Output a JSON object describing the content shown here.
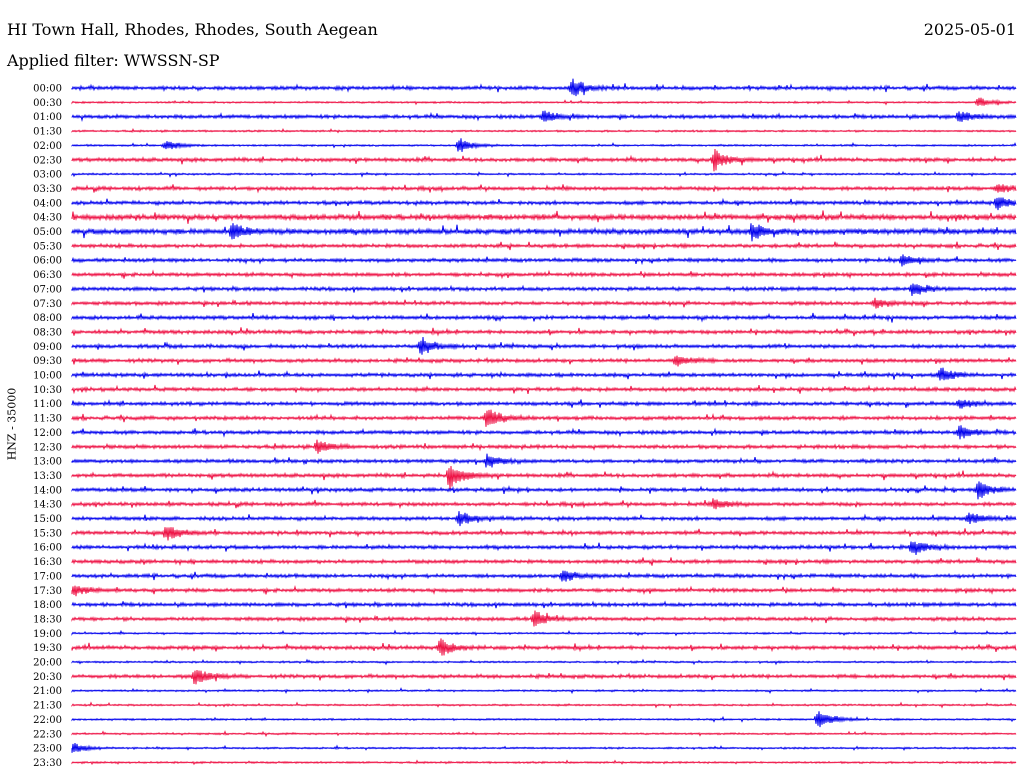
{
  "header": {
    "station": "HI Town Hall, Rhodes, Rhodes, South Aegean",
    "date": "2025-05-01",
    "filter": "Applied filter: WWSSN-SP",
    "y_axis_label": "HNZ - 35000"
  },
  "chart_data": {
    "type": "line",
    "title": "HI Town Hall, Rhodes, Rhodes, South Aegean",
    "subtitle": "Applied filter: WWSSN-SP",
    "ylabel": "HNZ - 35000",
    "row_labels": [
      "00:00",
      "00:30",
      "01:00",
      "01:30",
      "02:00",
      "02:30",
      "03:00",
      "03:30",
      "04:00",
      "04:30",
      "05:00",
      "05:30",
      "06:00",
      "06:30",
      "07:00",
      "07:30",
      "08:00",
      "08:30",
      "09:00",
      "09:30",
      "10:00",
      "10:30",
      "11:00",
      "11:30",
      "12:00",
      "12:30",
      "13:00",
      "13:30",
      "14:00",
      "14:30",
      "15:00",
      "15:30",
      "16:00",
      "16:30",
      "17:00",
      "17:30",
      "18:00",
      "18:30",
      "19:00",
      "19:30",
      "20:00",
      "20:30",
      "21:00",
      "21:30",
      "22:00",
      "22:30",
      "23:00",
      "23:30"
    ],
    "series_colors": [
      "#0000ee",
      "#ee1144"
    ],
    "noise_level": [
      2,
      1,
      2,
      1,
      1,
      2,
      1,
      2,
      2,
      3,
      3,
      2,
      2,
      2,
      2,
      2,
      2,
      2,
      2,
      2,
      2,
      2,
      2,
      2,
      2,
      2,
      2,
      2,
      2,
      2,
      2,
      2,
      2,
      2,
      2,
      2,
      2,
      2,
      1,
      2,
      1,
      2,
      1,
      1,
      1,
      1,
      1,
      1
    ],
    "events": [
      {
        "row": 0,
        "t": 0.53,
        "amp": 10
      },
      {
        "row": 1,
        "t": 0.96,
        "amp": 5
      },
      {
        "row": 2,
        "t": 0.5,
        "amp": 7
      },
      {
        "row": 2,
        "t": 0.94,
        "amp": 6
      },
      {
        "row": 4,
        "t": 0.1,
        "amp": 5
      },
      {
        "row": 4,
        "t": 0.41,
        "amp": 8
      },
      {
        "row": 5,
        "t": 0.68,
        "amp": 12
      },
      {
        "row": 7,
        "t": 0.98,
        "amp": 5
      },
      {
        "row": 8,
        "t": 0.98,
        "amp": 7
      },
      {
        "row": 10,
        "t": 0.17,
        "amp": 8
      },
      {
        "row": 10,
        "t": 0.72,
        "amp": 8
      },
      {
        "row": 12,
        "t": 0.88,
        "amp": 6
      },
      {
        "row": 14,
        "t": 0.89,
        "amp": 8
      },
      {
        "row": 15,
        "t": 0.85,
        "amp": 5
      },
      {
        "row": 18,
        "t": 0.37,
        "amp": 10
      },
      {
        "row": 19,
        "t": 0.64,
        "amp": 6
      },
      {
        "row": 20,
        "t": 0.92,
        "amp": 8
      },
      {
        "row": 22,
        "t": 0.94,
        "amp": 5
      },
      {
        "row": 23,
        "t": 0.44,
        "amp": 12
      },
      {
        "row": 24,
        "t": 0.94,
        "amp": 7
      },
      {
        "row": 25,
        "t": 0.26,
        "amp": 7
      },
      {
        "row": 26,
        "t": 0.44,
        "amp": 7
      },
      {
        "row": 27,
        "t": 0.4,
        "amp": 14
      },
      {
        "row": 28,
        "t": 0.96,
        "amp": 9
      },
      {
        "row": 29,
        "t": 0.68,
        "amp": 6
      },
      {
        "row": 30,
        "t": 0.41,
        "amp": 7
      },
      {
        "row": 30,
        "t": 0.95,
        "amp": 6
      },
      {
        "row": 31,
        "t": 0.1,
        "amp": 8
      },
      {
        "row": 32,
        "t": 0.89,
        "amp": 8
      },
      {
        "row": 34,
        "t": 0.52,
        "amp": 7
      },
      {
        "row": 35,
        "t": 0.0,
        "amp": 6
      },
      {
        "row": 37,
        "t": 0.49,
        "amp": 8
      },
      {
        "row": 39,
        "t": 0.39,
        "amp": 9
      },
      {
        "row": 41,
        "t": 0.13,
        "amp": 9
      },
      {
        "row": 44,
        "t": 0.79,
        "amp": 11
      },
      {
        "row": 46,
        "t": 0.0,
        "amp": 6
      }
    ]
  }
}
